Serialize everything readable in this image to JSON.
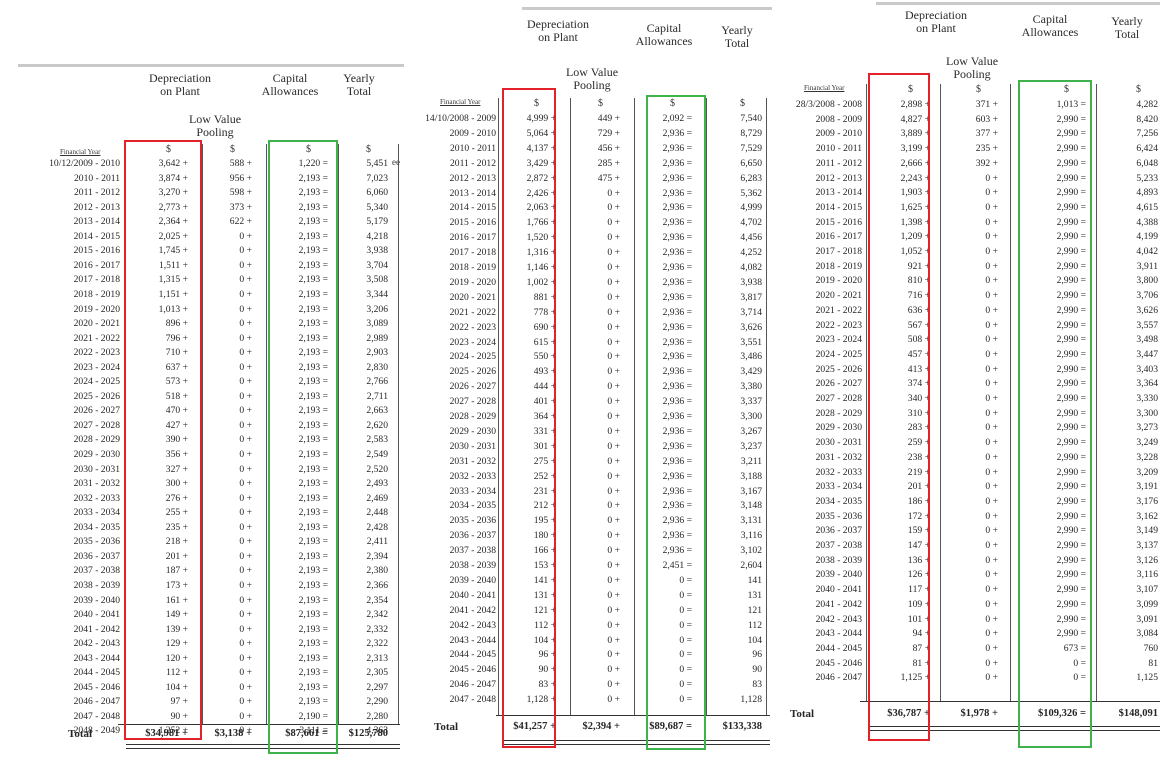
{
  "headings": {
    "depreciation": [
      "Depreciation",
      "on Plant"
    ],
    "low_value": [
      "Low Value",
      "Pooling"
    ],
    "capital": [
      "Capital",
      "Allowances"
    ],
    "yearly": [
      "Yearly",
      "Total"
    ],
    "currency": "$",
    "financial_year": "Financial Year",
    "total": "Total"
  },
  "highlight_colors": {
    "depreciation": "#e3212b",
    "capital": "#3fb24c"
  },
  "schedules": [
    {
      "side_note": "ee",
      "rows": [
        {
          "year": "10/12/2009 - 2010",
          "dep": "3,642",
          "lvp": "588",
          "cap": "1,220",
          "total": "5,451"
        },
        {
          "year": "2010 - 2011",
          "dep": "3,874",
          "lvp": "956",
          "cap": "2,193",
          "total": "7,023"
        },
        {
          "year": "2011 - 2012",
          "dep": "3,270",
          "lvp": "598",
          "cap": "2,193",
          "total": "6,060"
        },
        {
          "year": "2012 - 2013",
          "dep": "2,773",
          "lvp": "373",
          "cap": "2,193",
          "total": "5,340"
        },
        {
          "year": "2013 - 2014",
          "dep": "2,364",
          "lvp": "622",
          "cap": "2,193",
          "total": "5,179"
        },
        {
          "year": "2014 - 2015",
          "dep": "2,025",
          "lvp": "0",
          "cap": "2,193",
          "total": "4,218"
        },
        {
          "year": "2015 - 2016",
          "dep": "1,745",
          "lvp": "0",
          "cap": "2,193",
          "total": "3,938"
        },
        {
          "year": "2016 - 2017",
          "dep": "1,511",
          "lvp": "0",
          "cap": "2,193",
          "total": "3,704"
        },
        {
          "year": "2017 - 2018",
          "dep": "1,315",
          "lvp": "0",
          "cap": "2,193",
          "total": "3,508"
        },
        {
          "year": "2018 - 2019",
          "dep": "1,151",
          "lvp": "0",
          "cap": "2,193",
          "total": "3,344"
        },
        {
          "year": "2019 - 2020",
          "dep": "1,013",
          "lvp": "0",
          "cap": "2,193",
          "total": "3,206"
        },
        {
          "year": "2020 - 2021",
          "dep": "896",
          "lvp": "0",
          "cap": "2,193",
          "total": "3,089"
        },
        {
          "year": "2021 - 2022",
          "dep": "796",
          "lvp": "0",
          "cap": "2,193",
          "total": "2,989"
        },
        {
          "year": "2022 - 2023",
          "dep": "710",
          "lvp": "0",
          "cap": "2,193",
          "total": "2,903"
        },
        {
          "year": "2023 - 2024",
          "dep": "637",
          "lvp": "0",
          "cap": "2,193",
          "total": "2,830"
        },
        {
          "year": "2024 - 2025",
          "dep": "573",
          "lvp": "0",
          "cap": "2,193",
          "total": "2,766"
        },
        {
          "year": "2025 - 2026",
          "dep": "518",
          "lvp": "0",
          "cap": "2,193",
          "total": "2,711"
        },
        {
          "year": "2026 - 2027",
          "dep": "470",
          "lvp": "0",
          "cap": "2,193",
          "total": "2,663"
        },
        {
          "year": "2027 - 2028",
          "dep": "427",
          "lvp": "0",
          "cap": "2,193",
          "total": "2,620"
        },
        {
          "year": "2028 - 2029",
          "dep": "390",
          "lvp": "0",
          "cap": "2,193",
          "total": "2,583"
        },
        {
          "year": "2029 - 2030",
          "dep": "356",
          "lvp": "0",
          "cap": "2,193",
          "total": "2,549"
        },
        {
          "year": "2030 - 2031",
          "dep": "327",
          "lvp": "0",
          "cap": "2,193",
          "total": "2,520"
        },
        {
          "year": "2031 - 2032",
          "dep": "300",
          "lvp": "0",
          "cap": "2,193",
          "total": "2,493"
        },
        {
          "year": "2032 - 2033",
          "dep": "276",
          "lvp": "0",
          "cap": "2,193",
          "total": "2,469"
        },
        {
          "year": "2033 - 2034",
          "dep": "255",
          "lvp": "0",
          "cap": "2,193",
          "total": "2,448"
        },
        {
          "year": "2034 - 2035",
          "dep": "235",
          "lvp": "0",
          "cap": "2,193",
          "total": "2,428"
        },
        {
          "year": "2035 - 2036",
          "dep": "218",
          "lvp": "0",
          "cap": "2,193",
          "total": "2,411"
        },
        {
          "year": "2036 - 2037",
          "dep": "201",
          "lvp": "0",
          "cap": "2,193",
          "total": "2,394"
        },
        {
          "year": "2037 - 2038",
          "dep": "187",
          "lvp": "0",
          "cap": "2,193",
          "total": "2,380"
        },
        {
          "year": "2038 - 2039",
          "dep": "173",
          "lvp": "0",
          "cap": "2,193",
          "total": "2,366"
        },
        {
          "year": "2039 - 2040",
          "dep": "161",
          "lvp": "0",
          "cap": "2,193",
          "total": "2,354"
        },
        {
          "year": "2040 - 2041",
          "dep": "149",
          "lvp": "0",
          "cap": "2,193",
          "total": "2,342"
        },
        {
          "year": "2041 - 2042",
          "dep": "139",
          "lvp": "0",
          "cap": "2,193",
          "total": "2,332"
        },
        {
          "year": "2042 - 2043",
          "dep": "129",
          "lvp": "0",
          "cap": "2,193",
          "total": "2,322"
        },
        {
          "year": "2043 - 2044",
          "dep": "120",
          "lvp": "0",
          "cap": "2,193",
          "total": "2,313"
        },
        {
          "year": "2044 - 2045",
          "dep": "112",
          "lvp": "0",
          "cap": "2,193",
          "total": "2,305"
        },
        {
          "year": "2045 - 2046",
          "dep": "104",
          "lvp": "0",
          "cap": "2,193",
          "total": "2,297"
        },
        {
          "year": "2046 - 2047",
          "dep": "97",
          "lvp": "0",
          "cap": "2,193",
          "total": "2,290"
        },
        {
          "year": "2047 - 2048",
          "dep": "90",
          "lvp": "0",
          "cap": "2,190",
          "total": "2,280"
        },
        {
          "year": "2048 - 2049",
          "dep": "1,252",
          "lvp": "0",
          "cap": "3,111",
          "total": "4,363"
        }
      ],
      "totals": {
        "dep": "$34,981",
        "lvp": "$3,138",
        "cap": "$87,661",
        "total": "$125,780"
      }
    },
    {
      "rows": [
        {
          "year": "14/10/2008 - 2009",
          "dep": "4,999",
          "lvp": "449",
          "cap": "2,092",
          "total": "7,540"
        },
        {
          "year": "2009 - 2010",
          "dep": "5,064",
          "lvp": "729",
          "cap": "2,936",
          "total": "8,729"
        },
        {
          "year": "2010 - 2011",
          "dep": "4,137",
          "lvp": "456",
          "cap": "2,936",
          "total": "7,529"
        },
        {
          "year": "2011 - 2012",
          "dep": "3,429",
          "lvp": "285",
          "cap": "2,936",
          "total": "6,650"
        },
        {
          "year": "2012 - 2013",
          "dep": "2,872",
          "lvp": "475",
          "cap": "2,936",
          "total": "6,283"
        },
        {
          "year": "2013 - 2014",
          "dep": "2,426",
          "lvp": "0",
          "cap": "2,936",
          "total": "5,362"
        },
        {
          "year": "2014 - 2015",
          "dep": "2,063",
          "lvp": "0",
          "cap": "2,936",
          "total": "4,999"
        },
        {
          "year": "2015 - 2016",
          "dep": "1,766",
          "lvp": "0",
          "cap": "2,936",
          "total": "4,702"
        },
        {
          "year": "2016 - 2017",
          "dep": "1,520",
          "lvp": "0",
          "cap": "2,936",
          "total": "4,456"
        },
        {
          "year": "2017 - 2018",
          "dep": "1,316",
          "lvp": "0",
          "cap": "2,936",
          "total": "4,252"
        },
        {
          "year": "2018 - 2019",
          "dep": "1,146",
          "lvp": "0",
          "cap": "2,936",
          "total": "4,082"
        },
        {
          "year": "2019 - 2020",
          "dep": "1,002",
          "lvp": "0",
          "cap": "2,936",
          "total": "3,938"
        },
        {
          "year": "2020 - 2021",
          "dep": "881",
          "lvp": "0",
          "cap": "2,936",
          "total": "3,817"
        },
        {
          "year": "2021 - 2022",
          "dep": "778",
          "lvp": "0",
          "cap": "2,936",
          "total": "3,714"
        },
        {
          "year": "2022 - 2023",
          "dep": "690",
          "lvp": "0",
          "cap": "2,936",
          "total": "3,626"
        },
        {
          "year": "2023 - 2024",
          "dep": "615",
          "lvp": "0",
          "cap": "2,936",
          "total": "3,551"
        },
        {
          "year": "2024 - 2025",
          "dep": "550",
          "lvp": "0",
          "cap": "2,936",
          "total": "3,486"
        },
        {
          "year": "2025 - 2026",
          "dep": "493",
          "lvp": "0",
          "cap": "2,936",
          "total": "3,429"
        },
        {
          "year": "2026 - 2027",
          "dep": "444",
          "lvp": "0",
          "cap": "2,936",
          "total": "3,380"
        },
        {
          "year": "2027 - 2028",
          "dep": "401",
          "lvp": "0",
          "cap": "2,936",
          "total": "3,337"
        },
        {
          "year": "2028 - 2029",
          "dep": "364",
          "lvp": "0",
          "cap": "2,936",
          "total": "3,300"
        },
        {
          "year": "2029 - 2030",
          "dep": "331",
          "lvp": "0",
          "cap": "2,936",
          "total": "3,267"
        },
        {
          "year": "2030 - 2031",
          "dep": "301",
          "lvp": "0",
          "cap": "2,936",
          "total": "3,237"
        },
        {
          "year": "2031 - 2032",
          "dep": "275",
          "lvp": "0",
          "cap": "2,936",
          "total": "3,211"
        },
        {
          "year": "2032 - 2033",
          "dep": "252",
          "lvp": "0",
          "cap": "2,936",
          "total": "3,188"
        },
        {
          "year": "2033 - 2034",
          "dep": "231",
          "lvp": "0",
          "cap": "2,936",
          "total": "3,167"
        },
        {
          "year": "2034 - 2035",
          "dep": "212",
          "lvp": "0",
          "cap": "2,936",
          "total": "3,148"
        },
        {
          "year": "2035 - 2036",
          "dep": "195",
          "lvp": "0",
          "cap": "2,936",
          "total": "3,131"
        },
        {
          "year": "2036 - 2037",
          "dep": "180",
          "lvp": "0",
          "cap": "2,936",
          "total": "3,116"
        },
        {
          "year": "2037 - 2038",
          "dep": "166",
          "lvp": "0",
          "cap": "2,936",
          "total": "3,102"
        },
        {
          "year": "2038 - 2039",
          "dep": "153",
          "lvp": "0",
          "cap": "2,451",
          "total": "2,604"
        },
        {
          "year": "2039 - 2040",
          "dep": "141",
          "lvp": "0",
          "cap": "0",
          "total": "141"
        },
        {
          "year": "2040 - 2041",
          "dep": "131",
          "lvp": "0",
          "cap": "0",
          "total": "131"
        },
        {
          "year": "2041 - 2042",
          "dep": "121",
          "lvp": "0",
          "cap": "0",
          "total": "121"
        },
        {
          "year": "2042 - 2043",
          "dep": "112",
          "lvp": "0",
          "cap": "0",
          "total": "112"
        },
        {
          "year": "2043 - 2044",
          "dep": "104",
          "lvp": "0",
          "cap": "0",
          "total": "104"
        },
        {
          "year": "2044 - 2045",
          "dep": "96",
          "lvp": "0",
          "cap": "0",
          "total": "96"
        },
        {
          "year": "2045 - 2046",
          "dep": "90",
          "lvp": "0",
          "cap": "0",
          "total": "90"
        },
        {
          "year": "2046 - 2047",
          "dep": "83",
          "lvp": "0",
          "cap": "0",
          "total": "83"
        },
        {
          "year": "2047 - 2048",
          "dep": "1,128",
          "lvp": "0",
          "cap": "0",
          "total": "1,128"
        }
      ],
      "totals": {
        "dep": "$41,257",
        "lvp": "$2,394",
        "cap": "$89,687",
        "total": "$133,338"
      }
    },
    {
      "rows": [
        {
          "year": "28/3/2008 - 2008",
          "dep": "2,898",
          "lvp": "371",
          "cap": "1,013",
          "total": "4,282"
        },
        {
          "year": "2008 - 2009",
          "dep": "4,827",
          "lvp": "603",
          "cap": "2,990",
          "total": "8,420"
        },
        {
          "year": "2009 - 2010",
          "dep": "3,889",
          "lvp": "377",
          "cap": "2,990",
          "total": "7,256"
        },
        {
          "year": "2010 - 2011",
          "dep": "3,199",
          "lvp": "235",
          "cap": "2,990",
          "total": "6,424"
        },
        {
          "year": "2011 - 2012",
          "dep": "2,666",
          "lvp": "392",
          "cap": "2,990",
          "total": "6,048"
        },
        {
          "year": "2012 - 2013",
          "dep": "2,243",
          "lvp": "0",
          "cap": "2,990",
          "total": "5,233"
        },
        {
          "year": "2013 - 2014",
          "dep": "1,903",
          "lvp": "0",
          "cap": "2,990",
          "total": "4,893"
        },
        {
          "year": "2014 - 2015",
          "dep": "1,625",
          "lvp": "0",
          "cap": "2,990",
          "total": "4,615"
        },
        {
          "year": "2015 - 2016",
          "dep": "1,398",
          "lvp": "0",
          "cap": "2,990",
          "total": "4,388"
        },
        {
          "year": "2016 - 2017",
          "dep": "1,209",
          "lvp": "0",
          "cap": "2,990",
          "total": "4,199"
        },
        {
          "year": "2017 - 2018",
          "dep": "1,052",
          "lvp": "0",
          "cap": "2,990",
          "total": "4,042"
        },
        {
          "year": "2018 - 2019",
          "dep": "921",
          "lvp": "0",
          "cap": "2,990",
          "total": "3,911"
        },
        {
          "year": "2019 - 2020",
          "dep": "810",
          "lvp": "0",
          "cap": "2,990",
          "total": "3,800"
        },
        {
          "year": "2020 - 2021",
          "dep": "716",
          "lvp": "0",
          "cap": "2,990",
          "total": "3,706"
        },
        {
          "year": "2021 - 2022",
          "dep": "636",
          "lvp": "0",
          "cap": "2,990",
          "total": "3,626"
        },
        {
          "year": "2022 - 2023",
          "dep": "567",
          "lvp": "0",
          "cap": "2,990",
          "total": "3,557"
        },
        {
          "year": "2023 - 2024",
          "dep": "508",
          "lvp": "0",
          "cap": "2,990",
          "total": "3,498"
        },
        {
          "year": "2024 - 2025",
          "dep": "457",
          "lvp": "0",
          "cap": "2,990",
          "total": "3,447"
        },
        {
          "year": "2025 - 2026",
          "dep": "413",
          "lvp": "0",
          "cap": "2,990",
          "total": "3,403"
        },
        {
          "year": "2026 - 2027",
          "dep": "374",
          "lvp": "0",
          "cap": "2,990",
          "total": "3,364"
        },
        {
          "year": "2027 - 2028",
          "dep": "340",
          "lvp": "0",
          "cap": "2,990",
          "total": "3,330"
        },
        {
          "year": "2028 - 2029",
          "dep": "310",
          "lvp": "0",
          "cap": "2,990",
          "total": "3,300"
        },
        {
          "year": "2029 - 2030",
          "dep": "283",
          "lvp": "0",
          "cap": "2,990",
          "total": "3,273"
        },
        {
          "year": "2030 - 2031",
          "dep": "259",
          "lvp": "0",
          "cap": "2,990",
          "total": "3,249"
        },
        {
          "year": "2031 - 2032",
          "dep": "238",
          "lvp": "0",
          "cap": "2,990",
          "total": "3,228"
        },
        {
          "year": "2032 - 2033",
          "dep": "219",
          "lvp": "0",
          "cap": "2,990",
          "total": "3,209"
        },
        {
          "year": "2033 - 2034",
          "dep": "201",
          "lvp": "0",
          "cap": "2,990",
          "total": "3,191"
        },
        {
          "year": "2034 - 2035",
          "dep": "186",
          "lvp": "0",
          "cap": "2,990",
          "total": "3,176"
        },
        {
          "year": "2035 - 2036",
          "dep": "172",
          "lvp": "0",
          "cap": "2,990",
          "total": "3,162"
        },
        {
          "year": "2036 - 2037",
          "dep": "159",
          "lvp": "0",
          "cap": "2,990",
          "total": "3,149"
        },
        {
          "year": "2037 - 2038",
          "dep": "147",
          "lvp": "0",
          "cap": "2,990",
          "total": "3,137"
        },
        {
          "year": "2038 - 2039",
          "dep": "136",
          "lvp": "0",
          "cap": "2,990",
          "total": "3,126"
        },
        {
          "year": "2039 - 2040",
          "dep": "126",
          "lvp": "0",
          "cap": "2,990",
          "total": "3,116"
        },
        {
          "year": "2040 - 2041",
          "dep": "117",
          "lvp": "0",
          "cap": "2,990",
          "total": "3,107"
        },
        {
          "year": "2041 - 2042",
          "dep": "109",
          "lvp": "0",
          "cap": "2,990",
          "total": "3,099"
        },
        {
          "year": "2042 - 2043",
          "dep": "101",
          "lvp": "0",
          "cap": "2,990",
          "total": "3,091"
        },
        {
          "year": "2043 - 2044",
          "dep": "94",
          "lvp": "0",
          "cap": "2,990",
          "total": "3,084"
        },
        {
          "year": "2044 - 2045",
          "dep": "87",
          "lvp": "0",
          "cap": "673",
          "total": "760"
        },
        {
          "year": "2045 - 2046",
          "dep": "81",
          "lvp": "0",
          "cap": "0",
          "total": "81"
        },
        {
          "year": "2046 - 2047",
          "dep": "1,125",
          "lvp": "0",
          "cap": "0",
          "total": "1,125"
        }
      ],
      "totals": {
        "dep": "$36,787",
        "lvp": "$1,978",
        "cap": "$109,326",
        "total": "$148,091"
      }
    }
  ]
}
